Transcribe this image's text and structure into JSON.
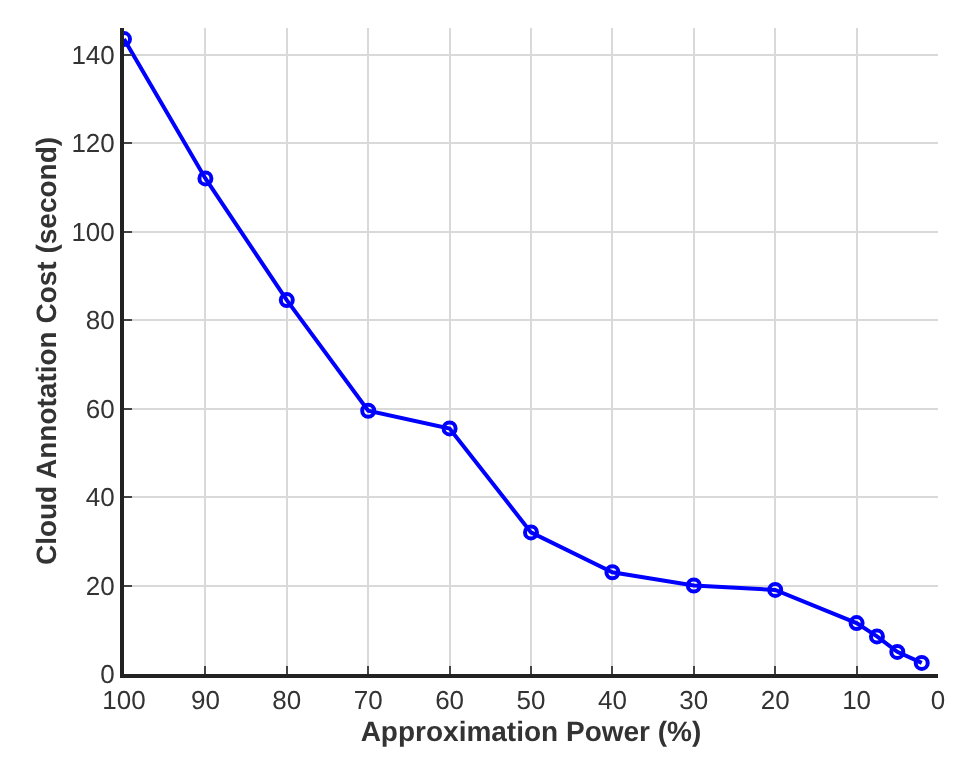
{
  "chart_data": {
    "type": "line",
    "xlabel": "Approximation Power (%)",
    "ylabel": "Cloud Annotation Cost (second)",
    "x": [
      100,
      90,
      80,
      70,
      60,
      50,
      40,
      30,
      20,
      10,
      7.5,
      5,
      2
    ],
    "series": [
      {
        "color": "#0000ff",
        "values": [
          143.5,
          112,
          84.5,
          59.5,
          55.5,
          32,
          23,
          20,
          19,
          11.5,
          8.5,
          5,
          2.5
        ]
      }
    ],
    "xlim": [
      100,
      0
    ],
    "ylim": [
      0,
      146
    ],
    "xticks": [
      100,
      90,
      80,
      70,
      60,
      50,
      40,
      30,
      20,
      10,
      0
    ],
    "yticks": [
      0,
      20,
      40,
      60,
      80,
      100,
      120,
      140
    ],
    "grid": true,
    "marker": "circle",
    "line_style": "solid"
  }
}
